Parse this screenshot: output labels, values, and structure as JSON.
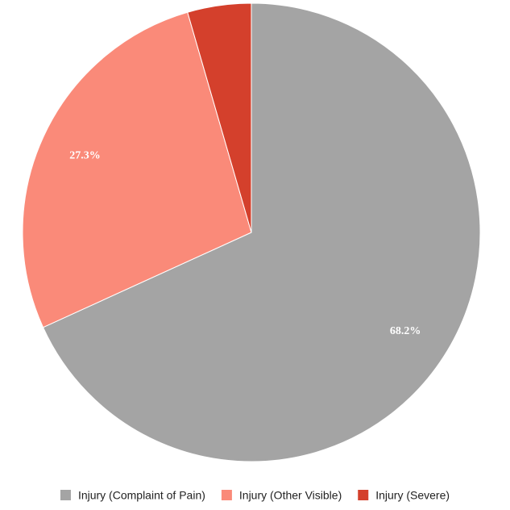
{
  "chart_data": {
    "type": "pie",
    "categories": [
      "Injury (Complaint of Pain)",
      "Injury (Other Visible)",
      "Injury (Severe)"
    ],
    "values": [
      68.2,
      27.3,
      4.5
    ],
    "value_labels": [
      "68.2%",
      "27.3%",
      null
    ],
    "colors": [
      "#a4a4a4",
      "#fa8a79",
      "#d4402c"
    ],
    "legend": "bottom"
  }
}
